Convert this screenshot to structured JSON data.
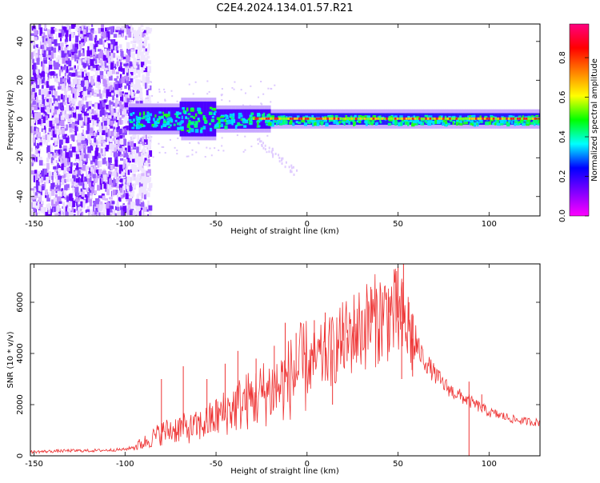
{
  "title": "C2E4.2024.134.01.57.R21",
  "chart_data": [
    {
      "type": "heatmap",
      "name": "spectrogram",
      "xlabel": "Height of straight line (km)",
      "ylabel": "Frequency (Hz)",
      "xlim": [
        -152,
        128
      ],
      "ylim": [
        -50,
        49
      ],
      "xticks": [
        "-150",
        "-100",
        "-50",
        "0",
        "50",
        "100"
      ],
      "yticks": [
        "-40",
        "-20",
        "0",
        "20",
        "40"
      ],
      "noise_region_x": [
        -152,
        -90
      ],
      "signal_band": {
        "x_start": -98,
        "x_end": 128,
        "center_freq": 0
      },
      "colorbar": {
        "label": "Normalized spectral amplitude",
        "range": [
          0,
          0.97
        ],
        "ticks": [
          "0.0",
          "0.2",
          "0.4",
          "0.6",
          "0.8"
        ],
        "colors": [
          "#ff00ff",
          "#8000ff",
          "#0000ff",
          "#00ffff",
          "#00ff00",
          "#ffff00",
          "#ff8000",
          "#ff0000",
          "#ff0080"
        ]
      }
    },
    {
      "type": "line",
      "name": "snr",
      "xlabel": "Height of straight line (km)",
      "ylabel": "SNR (10 * v/v)",
      "xlim": [
        -152,
        128
      ],
      "ylim": [
        0,
        7500
      ],
      "xticks": [
        "-150",
        "-100",
        "-50",
        "0",
        "50",
        "100"
      ],
      "yticks": [
        "0",
        "2000",
        "4000",
        "6000"
      ],
      "color": "#ee3333",
      "series": [
        {
          "x": [
            -152,
            -140,
            -130,
            -120,
            -110,
            -100,
            -95,
            -90,
            -85,
            -80,
            -75,
            -70,
            -65,
            -60,
            -55,
            -50,
            -45,
            -40,
            -35,
            -30,
            -25,
            -20,
            -15,
            -10,
            -5,
            0,
            5,
            10,
            15,
            20,
            25,
            30,
            35,
            40,
            45,
            50,
            55,
            60,
            65,
            70,
            75,
            80,
            85,
            90,
            95,
            100,
            105,
            110,
            115,
            120,
            128
          ],
          "y": [
            150,
            180,
            200,
            200,
            220,
            250,
            350,
            500,
            700,
            900,
            1000,
            1100,
            1050,
            1150,
            1300,
            1500,
            1700,
            1900,
            2100,
            2200,
            2400,
            2600,
            2700,
            3000,
            3300,
            3500,
            3700,
            3900,
            4200,
            4500,
            4800,
            5000,
            5200,
            5400,
            5600,
            5400,
            5000,
            4300,
            3700,
            3200,
            2800,
            2500,
            2300,
            2100,
            1900,
            1700,
            1600,
            1500,
            1400,
            1350,
            1300
          ]
        }
      ],
      "spikes": [
        {
          "x": -80,
          "y": 3000
        },
        {
          "x": -68,
          "y": 3500
        },
        {
          "x": -55,
          "y": 3000
        },
        {
          "x": -45,
          "y": 3600
        },
        {
          "x": -38,
          "y": 4100
        },
        {
          "x": -28,
          "y": 3800
        },
        {
          "x": -18,
          "y": 4300
        },
        {
          "x": -12,
          "y": 5200
        },
        {
          "x": -6,
          "y": 4800
        },
        {
          "x": 4,
          "y": 5300
        },
        {
          "x": 10,
          "y": 5600
        },
        {
          "x": 20,
          "y": 5200
        },
        {
          "x": 26,
          "y": 5700
        },
        {
          "x": 35,
          "y": 6600
        },
        {
          "x": 45,
          "y": 6200
        },
        {
          "x": 50,
          "y": 7400
        },
        {
          "x": 53,
          "y": 7500
        },
        {
          "x": 56,
          "y": 6000
        },
        {
          "x": 89,
          "y": 2900
        },
        {
          "x": 96,
          "y": 2400
        }
      ],
      "dips": [
        {
          "x": 14,
          "y": 2000
        },
        {
          "x": 22,
          "y": 3700
        },
        {
          "x": 52,
          "y": 3000
        },
        {
          "x": 58,
          "y": 3100
        },
        {
          "x": 89,
          "y": 0
        }
      ]
    }
  ]
}
